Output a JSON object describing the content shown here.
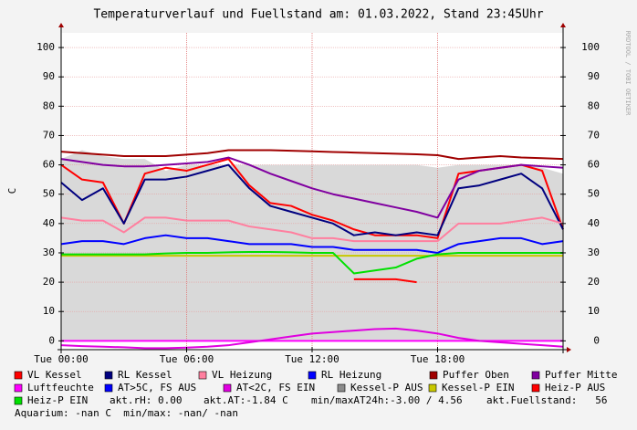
{
  "chart_data": {
    "type": "line",
    "title": "Temperaturverlauf und Fuellstand am: 01.03.2022, Stand 23:45Uhr",
    "y_label": "C",
    "watermark": "RRDTOOL / TOBI OETIKER",
    "x": [
      0,
      1,
      2,
      3,
      4,
      5,
      6,
      7,
      8,
      9,
      10,
      11,
      12,
      13,
      14,
      15,
      16,
      17,
      18,
      19,
      20,
      21,
      22,
      23,
      24
    ],
    "xlim": [
      0,
      24
    ],
    "xticks": [
      {
        "value": 0,
        "label": "Tue 00:00"
      },
      {
        "value": 6,
        "label": "Tue 06:00"
      },
      {
        "value": 12,
        "label": "Tue 12:00"
      },
      {
        "value": 18,
        "label": "Tue 18:00"
      }
    ],
    "ylim": [
      -3,
      105
    ],
    "yticks": [
      0,
      10,
      20,
      30,
      40,
      50,
      60,
      70,
      80,
      90,
      100
    ],
    "grid": true,
    "series": [
      {
        "name": "Kessel-P AUS",
        "color": "#8c8c8c",
        "style": "area",
        "values": [
          62,
          65,
          63,
          62,
          62,
          58,
          60,
          60,
          60,
          60,
          60,
          60,
          60,
          60,
          60,
          60,
          60,
          60,
          59,
          60,
          60,
          60,
          60,
          59,
          57
        ]
      },
      {
        "name": "VL Kessel",
        "color": "#ff0000",
        "values": [
          60,
          55,
          54,
          40,
          57,
          59,
          58,
          60,
          62,
          53,
          47,
          46,
          43,
          41,
          38,
          36,
          36,
          36,
          35,
          57,
          58,
          59,
          60,
          58,
          38
        ]
      },
      {
        "name": "RL Kessel",
        "color": "#00007f",
        "values": [
          54,
          48,
          52,
          40,
          55,
          55,
          56,
          58,
          60,
          52,
          46,
          44,
          42,
          40,
          36,
          37,
          36,
          37,
          36,
          52,
          53,
          55,
          57,
          52,
          38
        ]
      },
      {
        "name": "VL Heizung",
        "color": "#ff7f9f",
        "values": [
          42,
          41,
          41,
          37,
          42,
          42,
          41,
          41,
          41,
          39,
          38,
          37,
          35,
          35,
          34,
          34,
          34,
          34,
          34,
          40,
          40,
          40,
          41,
          42,
          40
        ]
      },
      {
        "name": "RL Heizung",
        "color": "#0000ff",
        "values": [
          33,
          34,
          34,
          33,
          35,
          36,
          35,
          35,
          34,
          33,
          33,
          33,
          32,
          32,
          31,
          31,
          31,
          31,
          30,
          33,
          34,
          35,
          35,
          33,
          34
        ]
      },
      {
        "name": "Puffer Oben",
        "color": "#a00000",
        "values": [
          64.5,
          64,
          63.5,
          63,
          63,
          63,
          63.5,
          64,
          65,
          65,
          65,
          64.8,
          64.6,
          64.4,
          64.2,
          64,
          63.8,
          63.6,
          63.3,
          62,
          62.5,
          63,
          62.5,
          62.3,
          62
        ]
      },
      {
        "name": "Puffer Mitte",
        "color": "#8000a0",
        "values": [
          62,
          61,
          60,
          59.5,
          59.5,
          60,
          60.5,
          61,
          62.5,
          60,
          57,
          54.5,
          52,
          50,
          48.5,
          47,
          45.5,
          44,
          42,
          55,
          58,
          59,
          60,
          59.5,
          59
        ]
      },
      {
        "name": "Luftfeuchte",
        "color": "#ff00ff",
        "values": [
          0,
          0,
          0,
          0,
          0,
          0,
          0,
          0,
          0,
          0,
          0,
          0,
          0,
          0,
          0,
          0,
          0,
          0,
          0,
          0,
          0,
          0,
          0,
          0,
          0
        ]
      },
      {
        "name": "AT>5C, FS AUS",
        "color": "#0000ff",
        "values": [
          null,
          null,
          null,
          null,
          null,
          null,
          null,
          null,
          null,
          null,
          null,
          null,
          null,
          null,
          null,
          null,
          null,
          null,
          null,
          null,
          null,
          null,
          null,
          null,
          null
        ]
      },
      {
        "name": "AT<2C, FS EIN",
        "color": "#e000e0",
        "values": [
          -1.5,
          -1.8,
          -2,
          -2.2,
          -2.5,
          -2.5,
          -2.3,
          -2,
          -1.5,
          -0.5,
          0.5,
          1.5,
          2.5,
          3,
          3.5,
          4,
          4.2,
          3.5,
          2.5,
          1,
          0,
          -0.5,
          -1,
          -1.5,
          -2
        ]
      },
      {
        "name": "Kessel-P EIN",
        "color": "#c8c800",
        "values": [
          29,
          29,
          29,
          29,
          29,
          29,
          29,
          29,
          29,
          29,
          29,
          29,
          29,
          29,
          29,
          29,
          29,
          29,
          29,
          29,
          29,
          29,
          29,
          29,
          29
        ]
      },
      {
        "name": "Heiz-P EIN",
        "color": "#00e000",
        "values": [
          29.5,
          29.5,
          29.5,
          29.5,
          29.5,
          29.8,
          30,
          30,
          30.2,
          30.3,
          30.3,
          30.2,
          30,
          30,
          23,
          24,
          25,
          28,
          29.5,
          30,
          30,
          30,
          30,
          30,
          30
        ]
      },
      {
        "name": "Heiz-P AUS",
        "color": "#ff0000",
        "values": [
          null,
          null,
          null,
          null,
          null,
          null,
          null,
          null,
          null,
          null,
          null,
          null,
          null,
          null,
          21,
          21,
          21,
          20,
          null,
          null,
          null,
          null,
          null,
          null,
          null
        ]
      }
    ],
    "notes": [
      "akt.rH: 0.00",
      "akt.AT:-1.84 C",
      "min/maxAT24h:-3.00 / 4.56",
      "akt.Fuellstand:   56",
      "Aquarium: -nan C  min/max: -nan/ -nan"
    ]
  }
}
